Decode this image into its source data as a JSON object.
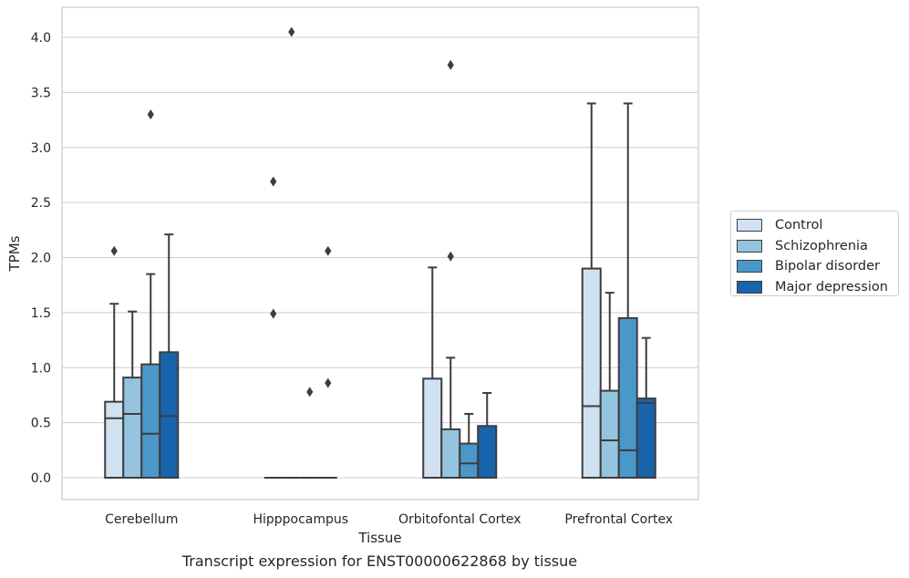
{
  "chart_data": {
    "type": "box",
    "title": "Transcript expression for ENST00000622868 by tissue",
    "xlabel": "Tissue",
    "ylabel": "TPMs",
    "ylim": [
      -0.2,
      4.25
    ],
    "yticks": [
      "0.0",
      "0.5",
      "1.0",
      "1.5",
      "2.0",
      "2.5",
      "3.0",
      "3.5",
      "4.0"
    ],
    "grid": true,
    "legend_position": "right",
    "categories": [
      "Cerebellum",
      "Hipppocampus",
      "Orbitofontal Cortex",
      "Prefrontal Cortex"
    ],
    "series": [
      {
        "name": "Control",
        "color": "#d0e1f2",
        "boxes": [
          {
            "q1": 0.0,
            "median": 0.54,
            "q3": 0.69,
            "whisker_low": 0.0,
            "whisker_high": 1.58,
            "outliers": [
              2.06
            ]
          },
          {
            "q1": 0.0,
            "median": 0.0,
            "q3": 0.0,
            "whisker_low": 0.0,
            "whisker_high": 0.0,
            "outliers": [
              1.49,
              2.69
            ]
          },
          {
            "q1": 0.0,
            "median": 0.0,
            "q3": 0.9,
            "whisker_low": 0.0,
            "whisker_high": 1.91,
            "outliers": []
          },
          {
            "q1": 0.0,
            "median": 0.65,
            "q3": 1.9,
            "whisker_low": 0.0,
            "whisker_high": 3.4,
            "outliers": []
          }
        ]
      },
      {
        "name": "Schizophrenia",
        "color": "#94c4df",
        "boxes": [
          {
            "q1": 0.0,
            "median": 0.58,
            "q3": 0.91,
            "whisker_low": 0.0,
            "whisker_high": 1.51,
            "outliers": []
          },
          {
            "q1": 0.0,
            "median": 0.0,
            "q3": 0.0,
            "whisker_low": 0.0,
            "whisker_high": 0.0,
            "outliers": [
              4.05
            ]
          },
          {
            "q1": 0.0,
            "median": 0.0,
            "q3": 0.44,
            "whisker_low": 0.0,
            "whisker_high": 1.09,
            "outliers": [
              2.01,
              3.75
            ]
          },
          {
            "q1": 0.0,
            "median": 0.34,
            "q3": 0.79,
            "whisker_low": 0.0,
            "whisker_high": 1.68,
            "outliers": []
          }
        ]
      },
      {
        "name": "Bipolar disorder",
        "color": "#4a98c9",
        "boxes": [
          {
            "q1": 0.0,
            "median": 0.4,
            "q3": 1.03,
            "whisker_low": 0.0,
            "whisker_high": 1.85,
            "outliers": [
              3.3
            ]
          },
          {
            "q1": 0.0,
            "median": 0.0,
            "q3": 0.0,
            "whisker_low": 0.0,
            "whisker_high": 0.0,
            "outliers": [
              0.78
            ]
          },
          {
            "q1": 0.0,
            "median": 0.13,
            "q3": 0.31,
            "whisker_low": 0.0,
            "whisker_high": 0.58,
            "outliers": []
          },
          {
            "q1": 0.0,
            "median": 0.25,
            "q3": 1.45,
            "whisker_low": 0.0,
            "whisker_high": 3.4,
            "outliers": []
          }
        ]
      },
      {
        "name": "Major depression",
        "color": "#1764ab",
        "boxes": [
          {
            "q1": 0.0,
            "median": 0.56,
            "q3": 1.14,
            "whisker_low": 0.0,
            "whisker_high": 2.21,
            "outliers": []
          },
          {
            "q1": 0.0,
            "median": 0.0,
            "q3": 0.0,
            "whisker_low": 0.0,
            "whisker_high": 0.0,
            "outliers": [
              0.86,
              2.06
            ]
          },
          {
            "q1": 0.0,
            "median": 0.0,
            "q3": 0.47,
            "whisker_low": 0.0,
            "whisker_high": 0.77,
            "outliers": []
          },
          {
            "q1": 0.0,
            "median": 0.68,
            "q3": 0.72,
            "whisker_low": 0.0,
            "whisker_high": 1.27,
            "outliers": []
          }
        ]
      }
    ]
  }
}
